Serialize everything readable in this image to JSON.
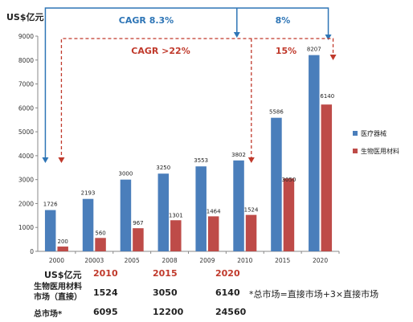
{
  "chart_data": {
    "type": "bar",
    "unit_label": "US$亿元",
    "categories": [
      "2000",
      "20003",
      "2005",
      "2008",
      "2009",
      "2010",
      "2015",
      "2020"
    ],
    "series": [
      {
        "name": "医疗器械",
        "color": "#4a7ebb",
        "values": [
          1726,
          2193,
          3000,
          3250,
          3553,
          3802,
          5586,
          8207
        ]
      },
      {
        "name": "生物医用材料",
        "color": "#be4b48",
        "values": [
          200,
          560,
          967,
          1301,
          1464,
          1524,
          3050,
          6140
        ]
      }
    ],
    "ylim": [
      0,
      9000
    ],
    "yticks": [
      "0",
      "1000",
      "2000",
      "3000",
      "4000",
      "5000",
      "6000",
      "7000",
      "8000",
      "9000"
    ],
    "grid": false,
    "legend_position": "right",
    "annotations": [
      {
        "text": "CAGR 8.3%",
        "color": "#2e75b6",
        "style": "solid"
      },
      {
        "text": "8%",
        "color": "#2e75b6",
        "style": "solid"
      },
      {
        "text": "CAGR >22%",
        "color": "#c0392b",
        "style": "dashed"
      },
      {
        "text": "15%",
        "color": "#c0392b",
        "style": "dashed"
      }
    ]
  },
  "table": {
    "unit": "US$亿元",
    "years": [
      "2010",
      "2015",
      "2020"
    ],
    "row1_label_line1": "生物医用材料",
    "row1_label_line2": "市场（直接）",
    "row1_values": [
      "1524",
      "3050",
      "6140"
    ],
    "row2_label": "总市场*",
    "row2_values": [
      "6095",
      "12200",
      "24560"
    ],
    "footnote": "*总市场=直接市场+3×直接市场"
  }
}
